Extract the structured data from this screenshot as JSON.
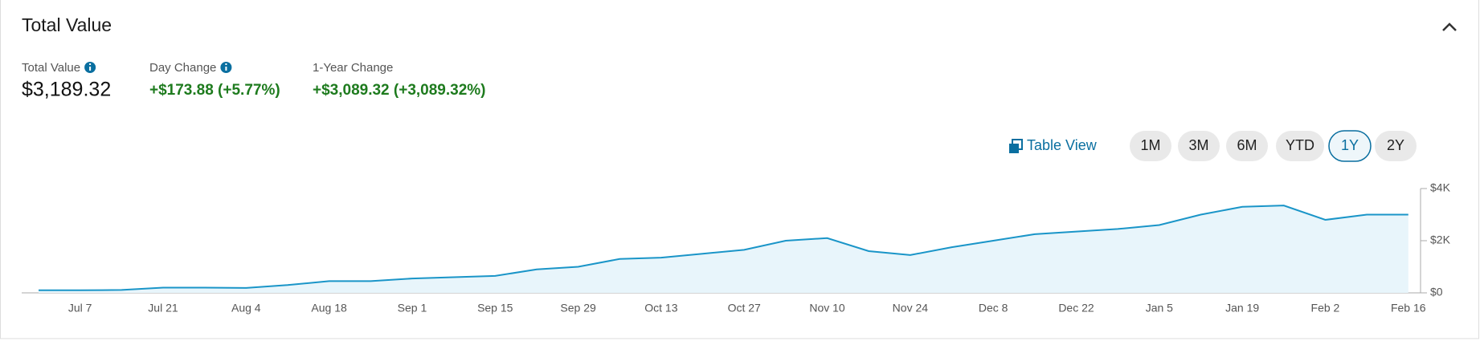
{
  "header": {
    "title": "Total Value"
  },
  "metrics": [
    {
      "label": "Total Value",
      "value": "$3,189.32"
    },
    {
      "label": "Day Change",
      "value": "+$173.88 (+5.77%)"
    },
    {
      "label": "1-Year Change",
      "value": "+$3,089.32 (+3,089.32%)"
    }
  ],
  "controls": {
    "table_view": "Table View",
    "ranges": [
      "1M",
      "3M",
      "6M",
      "YTD",
      "1Y",
      "2Y"
    ],
    "selected": "1Y"
  },
  "chart_data": {
    "type": "area",
    "categories": [
      null,
      "Jul 7",
      null,
      "Jul 21",
      null,
      "Aug 4",
      null,
      "Aug 18",
      null,
      "Sep 1",
      null,
      "Sep 15",
      null,
      "Sep 29",
      null,
      "Oct 13",
      null,
      "Oct 27",
      null,
      "Nov 10",
      null,
      "Nov 24",
      null,
      "Dec 8",
      null,
      "Dec 22",
      null,
      "Jan 5",
      null,
      "Jan 19",
      null,
      "Feb 2",
      null,
      "Feb 16"
    ],
    "values": [
      100,
      100,
      110,
      200,
      200,
      190,
      300,
      450,
      450,
      550,
      600,
      650,
      900,
      1000,
      1300,
      1350,
      1500,
      1650,
      2000,
      2100,
      1600,
      1450,
      1750,
      2000,
      2250,
      2350,
      2450,
      2600,
      3000,
      3300,
      3350,
      2800,
      3000,
      3000
    ],
    "color": "#1a95c8",
    "ylim": [
      0,
      4000
    ],
    "yticks": [
      {
        "value": 0,
        "label": "$0"
      },
      {
        "value": 2000,
        "label": "$2K"
      },
      {
        "value": 4000,
        "label": "$4K"
      }
    ]
  }
}
